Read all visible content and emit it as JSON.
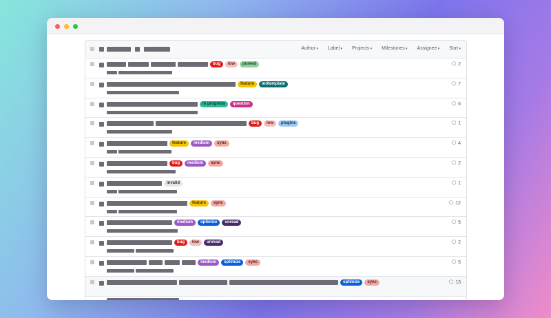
{
  "filters": [
    "Author",
    "Label",
    "Projects",
    "Milestones",
    "Assignee",
    "Sort"
  ],
  "label_colors": {
    "bug": [
      "#e01b1b",
      "#fff"
    ],
    "low": [
      "#f4bcbc",
      "#5a1f1f"
    ],
    "pureed": [
      "#8fd19e",
      "#1b4a25"
    ],
    "feature": [
      "#f5c400",
      "#4a3b00"
    ],
    "mdtemplate": [
      "#0e6f73",
      "#fff"
    ],
    "in progress": [
      "#2fb89a",
      "#063d31"
    ],
    "question": [
      "#cc2f86",
      "#fff"
    ],
    "plugins": [
      "#9fc7f0",
      "#123a60"
    ],
    "medium": [
      "#9b59c4",
      "#fff"
    ],
    "sync": [
      "#f0a9a3",
      "#5a1f1f"
    ],
    "invalid": [
      "#e6e6e6",
      "#333"
    ],
    "optimize": [
      "#0b5ed7",
      "#fff"
    ],
    "unread": [
      "#4b2a6b",
      "#fff"
    ]
  },
  "issues": [
    {
      "labels": [
        "bug",
        "low",
        "pureed"
      ],
      "comments": "2"
    },
    {
      "labels": [
        "feature",
        "mdtemplate"
      ],
      "comments": "7"
    },
    {
      "labels": [
        "in progress",
        "question"
      ],
      "comments": "6"
    },
    {
      "labels": [
        "bug",
        "low",
        "plugins"
      ],
      "comments": "1"
    },
    {
      "labels": [
        "feature",
        "medium",
        "sync"
      ],
      "comments": "4"
    },
    {
      "labels": [
        "bug",
        "medium",
        "sync"
      ],
      "comments": "2"
    },
    {
      "labels": [
        "invalid"
      ],
      "comments": "1"
    },
    {
      "labels": [
        "feature",
        "sync"
      ],
      "comments": "12"
    },
    {
      "labels": [
        "medium",
        "optimize",
        "unread"
      ],
      "comments": "5"
    },
    {
      "labels": [
        "bug",
        "low",
        "unread"
      ],
      "comments": "2"
    },
    {
      "labels": [
        "medium",
        "optimize",
        "sync"
      ],
      "comments": "5"
    },
    {
      "labels": [
        "optimize",
        "sync"
      ],
      "comments": "13",
      "highlighted": true
    }
  ]
}
